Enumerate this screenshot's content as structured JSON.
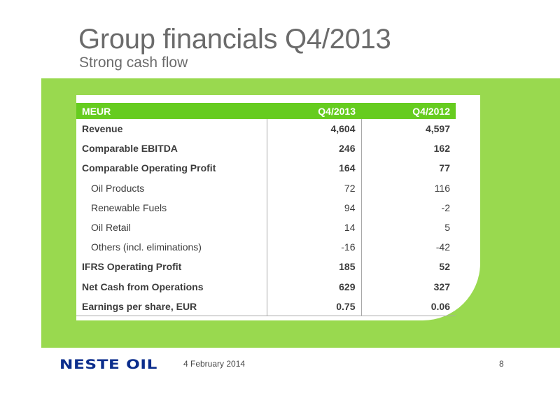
{
  "slide": {
    "title": "Group financials Q4/2013",
    "subtitle": "Strong cash flow"
  },
  "table": {
    "headers": [
      "MEUR",
      "Q4/2013",
      "Q4/2012"
    ],
    "rows": [
      {
        "label": "Revenue",
        "q4_2013": "4,604",
        "q4_2012": "4,597",
        "style": "bold"
      },
      {
        "label": "Comparable EBITDA",
        "q4_2013": "246",
        "q4_2012": "162",
        "style": "bold"
      },
      {
        "label": "Comparable Operating Profit",
        "q4_2013": "164",
        "q4_2012": "77",
        "style": "bold"
      },
      {
        "label": "Oil Products",
        "q4_2013": "72",
        "q4_2012": "116",
        "style": "indent"
      },
      {
        "label": "Renewable Fuels",
        "q4_2013": "94",
        "q4_2012": "-2",
        "style": "indent"
      },
      {
        "label": "Oil Retail",
        "q4_2013": "14",
        "q4_2012": "5",
        "style": "indent"
      },
      {
        "label": "Others (incl. eliminations)",
        "q4_2013": "-16",
        "q4_2012": "-42",
        "style": "indent"
      },
      {
        "label": "IFRS Operating Profit",
        "q4_2013": "185",
        "q4_2012": "52",
        "style": "bold"
      },
      {
        "label": "Net Cash from Operations",
        "q4_2013": "629",
        "q4_2012": "327",
        "style": "bold"
      },
      {
        "label": "Earnings per share, EUR",
        "q4_2013": "0.75",
        "q4_2012": "0.06",
        "style": "bold"
      }
    ]
  },
  "footer": {
    "logo_text": "NESTE OIL",
    "date": "4 February 2014",
    "page_number": "8"
  },
  "colors": {
    "band_green": "#99d94f",
    "header_green": "#66cc1f",
    "logo_blue": "#0b2d8c",
    "title_gray": "#6b6b6b"
  }
}
